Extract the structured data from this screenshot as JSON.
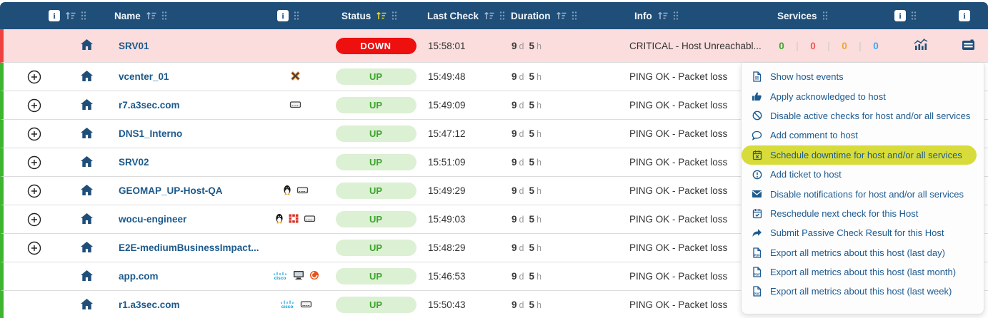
{
  "colors": {
    "header_bg": "#1f4e79",
    "accent_navy": "#1d5a8f",
    "down_red": "#ee0f0f",
    "down_row_bg": "#fbdddd",
    "down_row_border": "#f04141",
    "up_row_border": "#3db52e",
    "up_badge_bg": "#dcf0d4",
    "up_badge_text": "#3da42e",
    "sort_active": "#e5d62c",
    "highlight_yellow": "#d8dc3a",
    "count_ok": "#3da42e",
    "count_critical": "#f25454",
    "count_warning": "#f0a62e",
    "count_unknown": "#42a5f5",
    "link_navy": "#1c5a8c"
  },
  "header": {
    "name_label": "Name",
    "status_label": "Status",
    "last_check_label": "Last Check",
    "duration_label": "Duration",
    "info_label": "Info",
    "services_label": "Services",
    "info_badge": "i",
    "active_sort_column": "Status"
  },
  "rows": [
    {
      "name": "SRV01",
      "expandable": false,
      "os_icons": [],
      "status": "DOWN",
      "last_check": "15:58:01",
      "duration": {
        "d": "9",
        "h": "5"
      },
      "info": "CRITICAL - Host Unreachabl...",
      "services_counts": {
        "ok": "0",
        "critical": "0",
        "warning": "0",
        "unknown": "0"
      },
      "has_metrics_icon": true,
      "has_actions_icon": true
    },
    {
      "name": "vcenter_01",
      "expandable": true,
      "os_icons": [
        "vmware"
      ],
      "status": "UP",
      "last_check": "15:49:48",
      "duration": {
        "d": "9",
        "h": "5"
      },
      "info": "PING OK - Packet loss"
    },
    {
      "name": "r7.a3sec.com",
      "expandable": true,
      "os_icons": [
        "server"
      ],
      "status": "UP",
      "last_check": "15:49:09",
      "duration": {
        "d": "9",
        "h": "5"
      },
      "info": "PING OK - Packet loss"
    },
    {
      "name": "DNS1_Interno",
      "expandable": true,
      "os_icons": [],
      "status": "UP",
      "last_check": "15:47:12",
      "duration": {
        "d": "9",
        "h": "5"
      },
      "info": "PING OK - Packet loss"
    },
    {
      "name": "SRV02",
      "expandable": true,
      "os_icons": [],
      "status": "UP",
      "last_check": "15:51:09",
      "duration": {
        "d": "9",
        "h": "5"
      },
      "info": "PING OK - Packet loss"
    },
    {
      "name": "GEOMAP_UP-Host-QA",
      "expandable": true,
      "os_icons": [
        "linux",
        "server"
      ],
      "status": "UP",
      "last_check": "15:49:29",
      "duration": {
        "d": "9",
        "h": "5"
      },
      "info": "PING OK - Packet loss"
    },
    {
      "name": "wocu-engineer",
      "expandable": true,
      "os_icons": [
        "linux",
        "fortinet",
        "server"
      ],
      "status": "UP",
      "last_check": "15:49:03",
      "duration": {
        "d": "9",
        "h": "5"
      },
      "info": "PING OK - Packet loss"
    },
    {
      "name": "E2E-mediumBusinessImpact...",
      "expandable": true,
      "os_icons": [],
      "status": "UP",
      "last_check": "15:48:29",
      "duration": {
        "d": "9",
        "h": "5"
      },
      "info": "PING OK - Packet loss"
    },
    {
      "name": "app.com",
      "expandable": false,
      "os_icons": [
        "cisco",
        "monitor",
        "appcircle"
      ],
      "status": "UP",
      "last_check": "15:46:53",
      "duration": {
        "d": "9",
        "h": "5"
      },
      "info": "PING OK - Packet loss"
    },
    {
      "name": "r1.a3sec.com",
      "expandable": false,
      "os_icons": [
        "cisco",
        "server"
      ],
      "status": "UP",
      "last_check": "15:50:43",
      "duration": {
        "d": "9",
        "h": "5"
      },
      "info": "PING OK - Packet loss"
    }
  ],
  "context_menu": {
    "items": [
      {
        "icon": "file-lines-icon",
        "label": "Show host events",
        "highlighted": false
      },
      {
        "icon": "thumbs-up-icon",
        "label": "Apply acknowledged to host",
        "highlighted": false
      },
      {
        "icon": "ban-icon",
        "label": "Disable active checks for host and/or all services",
        "highlighted": false
      },
      {
        "icon": "comment-icon",
        "label": "Add comment to host",
        "highlighted": false
      },
      {
        "icon": "calendar-x-icon",
        "label": "Schedule downtime for host and/or all services",
        "highlighted": true
      },
      {
        "icon": "exclamation-circle-icon",
        "label": "Add ticket to host",
        "highlighted": false
      },
      {
        "icon": "envelope-icon",
        "label": "Disable notifications for host and/or all services",
        "highlighted": false
      },
      {
        "icon": "calendar-check-icon",
        "label": "Reschedule next check for this Host",
        "highlighted": false
      },
      {
        "icon": "share-arrow-icon",
        "label": "Submit Passive Check Result for this Host",
        "highlighted": false
      },
      {
        "icon": "file-pdf-icon",
        "label": "Export all metrics about this host (last day)",
        "highlighted": false
      },
      {
        "icon": "file-pdf-icon",
        "label": "Export all metrics about this host (last month)",
        "highlighted": false
      },
      {
        "icon": "file-pdf-icon",
        "label": "Export all metrics about this host (last week)",
        "highlighted": false
      }
    ]
  }
}
